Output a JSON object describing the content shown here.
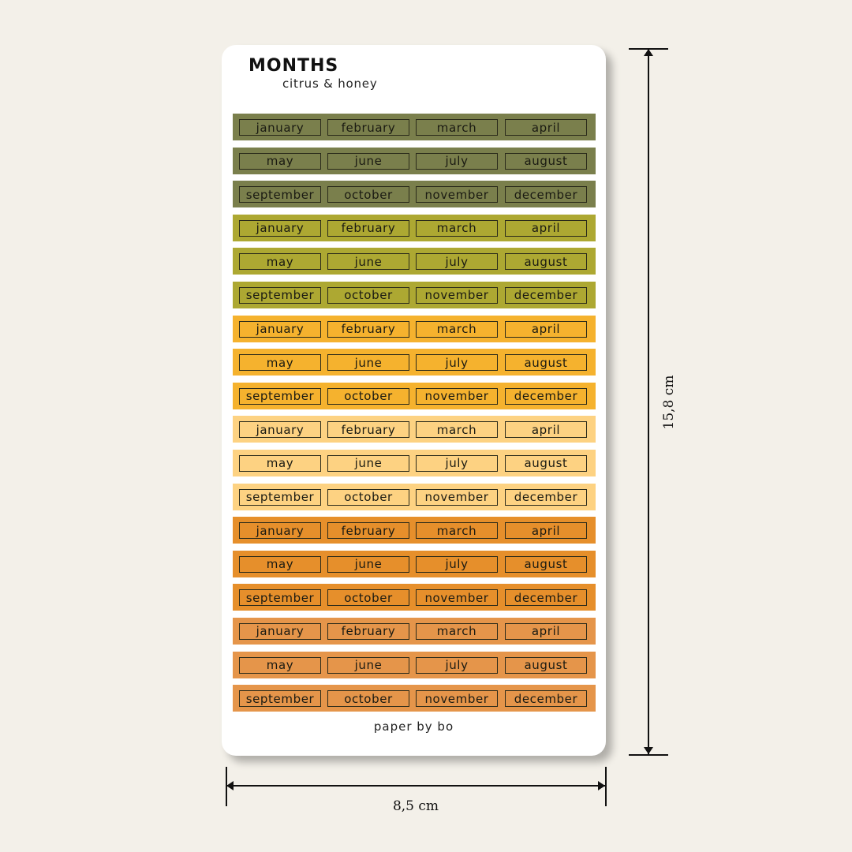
{
  "sheet": {
    "title": "MONTHS",
    "subtitle": "citrus & honey",
    "footer": "paper by bo"
  },
  "dimensions": {
    "width_label": "8,5 cm",
    "height_label": "15,8 cm"
  },
  "strips": [
    {
      "color": "#7a7f4c",
      "labels": [
        "january",
        "february",
        "march",
        "april"
      ]
    },
    {
      "color": "#7a7f4c",
      "labels": [
        "may",
        "june",
        "july",
        "august"
      ]
    },
    {
      "color": "#7a7f4c",
      "labels": [
        "september",
        "october",
        "november",
        "december"
      ]
    },
    {
      "color": "#ada832",
      "labels": [
        "january",
        "february",
        "march",
        "april"
      ]
    },
    {
      "color": "#ada832",
      "labels": [
        "may",
        "june",
        "july",
        "august"
      ]
    },
    {
      "color": "#ada832",
      "labels": [
        "september",
        "october",
        "november",
        "december"
      ]
    },
    {
      "color": "#f5b22e",
      "labels": [
        "january",
        "february",
        "march",
        "april"
      ]
    },
    {
      "color": "#f5b22e",
      "labels": [
        "may",
        "june",
        "july",
        "august"
      ]
    },
    {
      "color": "#f5b22e",
      "labels": [
        "september",
        "october",
        "november",
        "december"
      ]
    },
    {
      "color": "#fdd282",
      "labels": [
        "january",
        "february",
        "march",
        "april"
      ]
    },
    {
      "color": "#fdd282",
      "labels": [
        "may",
        "june",
        "july",
        "august"
      ]
    },
    {
      "color": "#fdd282",
      "labels": [
        "september",
        "october",
        "november",
        "december"
      ]
    },
    {
      "color": "#e68f2b",
      "labels": [
        "january",
        "february",
        "march",
        "april"
      ]
    },
    {
      "color": "#e68f2b",
      "labels": [
        "may",
        "june",
        "july",
        "august"
      ]
    },
    {
      "color": "#e68f2b",
      "labels": [
        "september",
        "october",
        "november",
        "december"
      ]
    },
    {
      "color": "#e5954a",
      "labels": [
        "january",
        "february",
        "march",
        "april"
      ]
    },
    {
      "color": "#e5954a",
      "labels": [
        "may",
        "june",
        "july",
        "august"
      ]
    },
    {
      "color": "#e5954a",
      "labels": [
        "september",
        "october",
        "november",
        "december"
      ]
    }
  ]
}
